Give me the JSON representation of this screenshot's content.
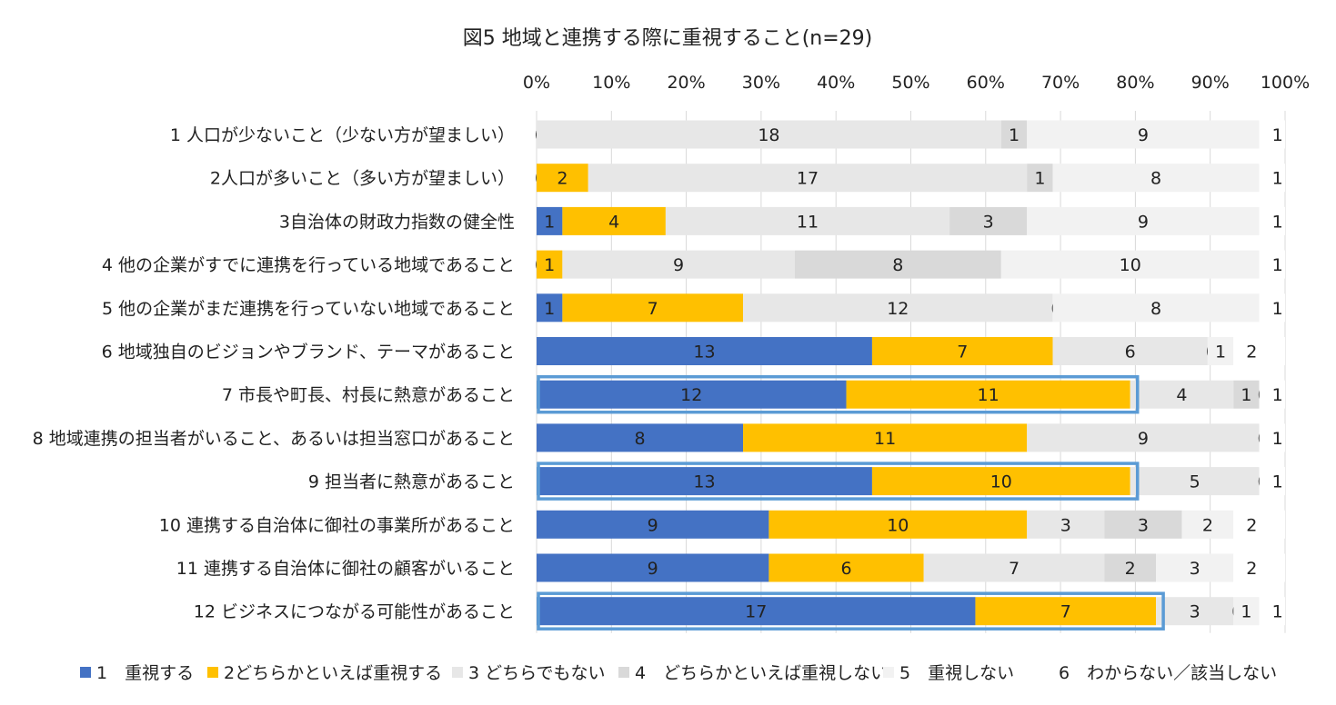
{
  "chart_data": {
    "type": "bar",
    "orientation": "horizontal",
    "stacked": "percent",
    "title": "図5 地域と連携する際に重視すること(n=29)",
    "x_ticks": [
      "0%",
      "10%",
      "20%",
      "30%",
      "40%",
      "50%",
      "60%",
      "70%",
      "80%",
      "90%",
      "100%"
    ],
    "xlim": [
      0,
      100
    ],
    "grid": true,
    "legend_position": "bottom",
    "categories": [
      "1 人口が少ないこと（少ない方が望ましい）",
      "2人口が多いこと（多い方が望ましい）",
      "3自治体の財政力指数の健全性",
      "4 他の企業がすでに連携を行っている地域であること",
      "5 他の企業がまだ連携を行っていない地域であること",
      "6 地域独自のビジョンやブランド、テーマがあること",
      "7 市長や町長、村長に熱意があること",
      "8 地域連携の担当者がいること、あるいは担当窓口があること",
      "9 担当者に熱意があること",
      "10 連携する自治体に御社の事業所があること",
      "11 連携する自治体に御社の顧客がいること",
      "12 ビジネスにつながる可能性があること"
    ],
    "series": [
      {
        "name": "1　重視する",
        "color": "#4472C4",
        "values": [
          0,
          0,
          1,
          0,
          1,
          13,
          12,
          8,
          13,
          9,
          9,
          17
        ]
      },
      {
        "name": "2どちらかといえば重視する",
        "color": "#FFC000",
        "values": [
          0,
          2,
          4,
          1,
          7,
          7,
          11,
          11,
          10,
          10,
          6,
          7
        ]
      },
      {
        "name": "3 どちらでもない",
        "color": "#E7E7E7",
        "values": [
          18,
          17,
          11,
          9,
          12,
          6,
          4,
          9,
          5,
          3,
          7,
          3
        ]
      },
      {
        "name": "4　どちらかといえば重視しない",
        "color": "#D9D9D9",
        "values": [
          1,
          1,
          3,
          8,
          0,
          0,
          1,
          0,
          0,
          3,
          2,
          0
        ]
      },
      {
        "name": "5　重視しない",
        "color": "#F2F2F2",
        "values": [
          9,
          8,
          9,
          10,
          8,
          1,
          0,
          0,
          0,
          2,
          3,
          1
        ]
      },
      {
        "name": "6　わからない／該当しない",
        "color": "#FFFFFF",
        "values": [
          1,
          1,
          1,
          1,
          1,
          2,
          1,
          1,
          1,
          2,
          2,
          1
        ]
      }
    ],
    "highlighted_categories": [
      6,
      8,
      11
    ],
    "highlight_color": "#5B9BD5"
  }
}
